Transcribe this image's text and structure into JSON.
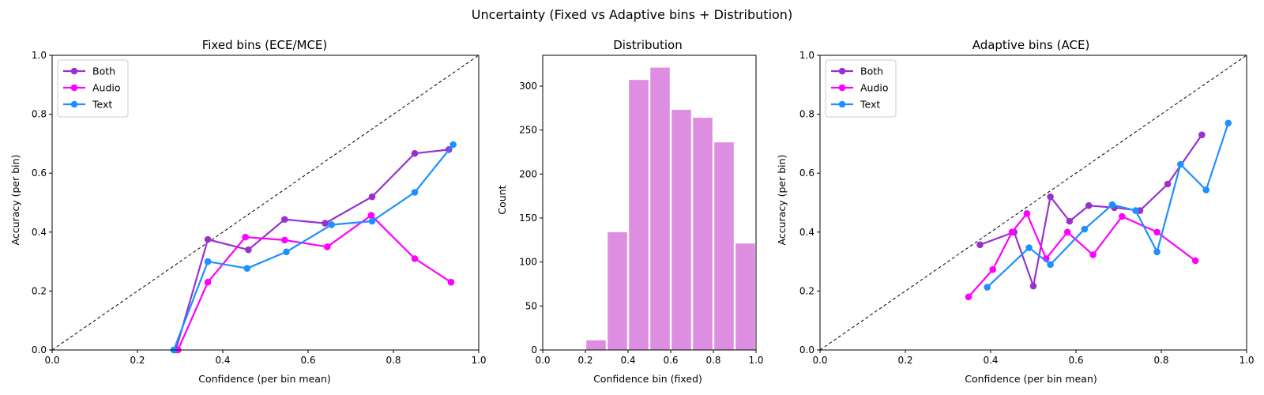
{
  "figure": {
    "suptitle": "Uncertainty (Fixed vs Adaptive bins + Distribution)"
  },
  "colors": {
    "both": "#9932cc",
    "audio": "#ff00ff",
    "text": "#1e90ff",
    "bars": "#dd8ee0",
    "diagonal": "#000000"
  },
  "chart_data": [
    {
      "type": "line",
      "title": "Fixed bins (ECE/MCE)",
      "xlabel": "Confidence (per bin mean)",
      "ylabel": "Accuracy (per bin)",
      "xlim": [
        0,
        1
      ],
      "ylim": [
        0,
        1
      ],
      "xticks": [
        "0.0",
        "0.2",
        "0.4",
        "0.6",
        "0.8",
        "1.0"
      ],
      "yticks": [
        "0.0",
        "0.2",
        "0.4",
        "0.6",
        "0.8",
        "1.0"
      ],
      "legend": "upper-left",
      "reference_line": "diagonal",
      "series": [
        {
          "name": "Both",
          "color": "#9932cc",
          "x": [
            0.29,
            0.365,
            0.46,
            0.545,
            0.64,
            0.75,
            0.85,
            0.93
          ],
          "y": [
            0.0,
            0.375,
            0.34,
            0.443,
            0.43,
            0.52,
            0.667,
            0.68
          ]
        },
        {
          "name": "Audio",
          "color": "#ff00ff",
          "x": [
            0.295,
            0.365,
            0.453,
            0.545,
            0.645,
            0.748,
            0.85,
            0.935
          ],
          "y": [
            0.0,
            0.23,
            0.383,
            0.373,
            0.35,
            0.457,
            0.31,
            0.23
          ]
        },
        {
          "name": "Text",
          "color": "#1e90ff",
          "x": [
            0.285,
            0.365,
            0.457,
            0.549,
            0.655,
            0.75,
            0.85,
            0.94
          ],
          "y": [
            0.0,
            0.3,
            0.277,
            0.333,
            0.425,
            0.437,
            0.535,
            0.697
          ]
        }
      ]
    },
    {
      "type": "bar",
      "title": "Distribution",
      "xlabel": "Confidence bin (fixed)",
      "ylabel": "Count",
      "xlim": [
        0,
        1
      ],
      "ylim": [
        0,
        335
      ],
      "xticks": [
        "0.0",
        "0.2",
        "0.4",
        "0.6",
        "0.8",
        "1.0"
      ],
      "yticks": [
        "0",
        "50",
        "100",
        "150",
        "200",
        "250",
        "300"
      ],
      "bin_edges": [
        0.0,
        0.1,
        0.2,
        0.3,
        0.4,
        0.5,
        0.6,
        0.7,
        0.8,
        0.9,
        1.0
      ],
      "values": [
        0,
        0,
        11,
        134,
        307,
        321,
        273,
        264,
        236,
        121
      ]
    },
    {
      "type": "line",
      "title": "Adaptive bins (ACE)",
      "xlabel": "Confidence (per bin mean)",
      "ylabel": "Accuracy (per bin)",
      "xlim": [
        0,
        1
      ],
      "ylim": [
        0,
        1
      ],
      "xticks": [
        "0.0",
        "0.2",
        "0.4",
        "0.6",
        "0.8",
        "1.0"
      ],
      "yticks": [
        "0.0",
        "0.2",
        "0.4",
        "0.6",
        "0.8",
        "1.0"
      ],
      "legend": "upper-left",
      "reference_line": "diagonal",
      "series": [
        {
          "name": "Both",
          "color": "#9932cc",
          "x": [
            0.375,
            0.455,
            0.5,
            0.54,
            0.585,
            0.63,
            0.69,
            0.75,
            0.815,
            0.895
          ],
          "y": [
            0.357,
            0.4,
            0.217,
            0.52,
            0.437,
            0.49,
            0.483,
            0.473,
            0.563,
            0.73
          ]
        },
        {
          "name": "Audio",
          "color": "#ff00ff",
          "x": [
            0.348,
            0.405,
            0.45,
            0.485,
            0.53,
            0.58,
            0.64,
            0.708,
            0.79,
            0.88
          ],
          "y": [
            0.18,
            0.273,
            0.4,
            0.463,
            0.31,
            0.4,
            0.323,
            0.453,
            0.4,
            0.303
          ]
        },
        {
          "name": "Text",
          "color": "#1e90ff",
          "x": [
            0.392,
            0.49,
            0.54,
            0.62,
            0.685,
            0.74,
            0.79,
            0.845,
            0.905,
            0.957
          ],
          "y": [
            0.213,
            0.347,
            0.29,
            0.41,
            0.493,
            0.473,
            0.333,
            0.63,
            0.543,
            0.77
          ]
        }
      ]
    }
  ]
}
